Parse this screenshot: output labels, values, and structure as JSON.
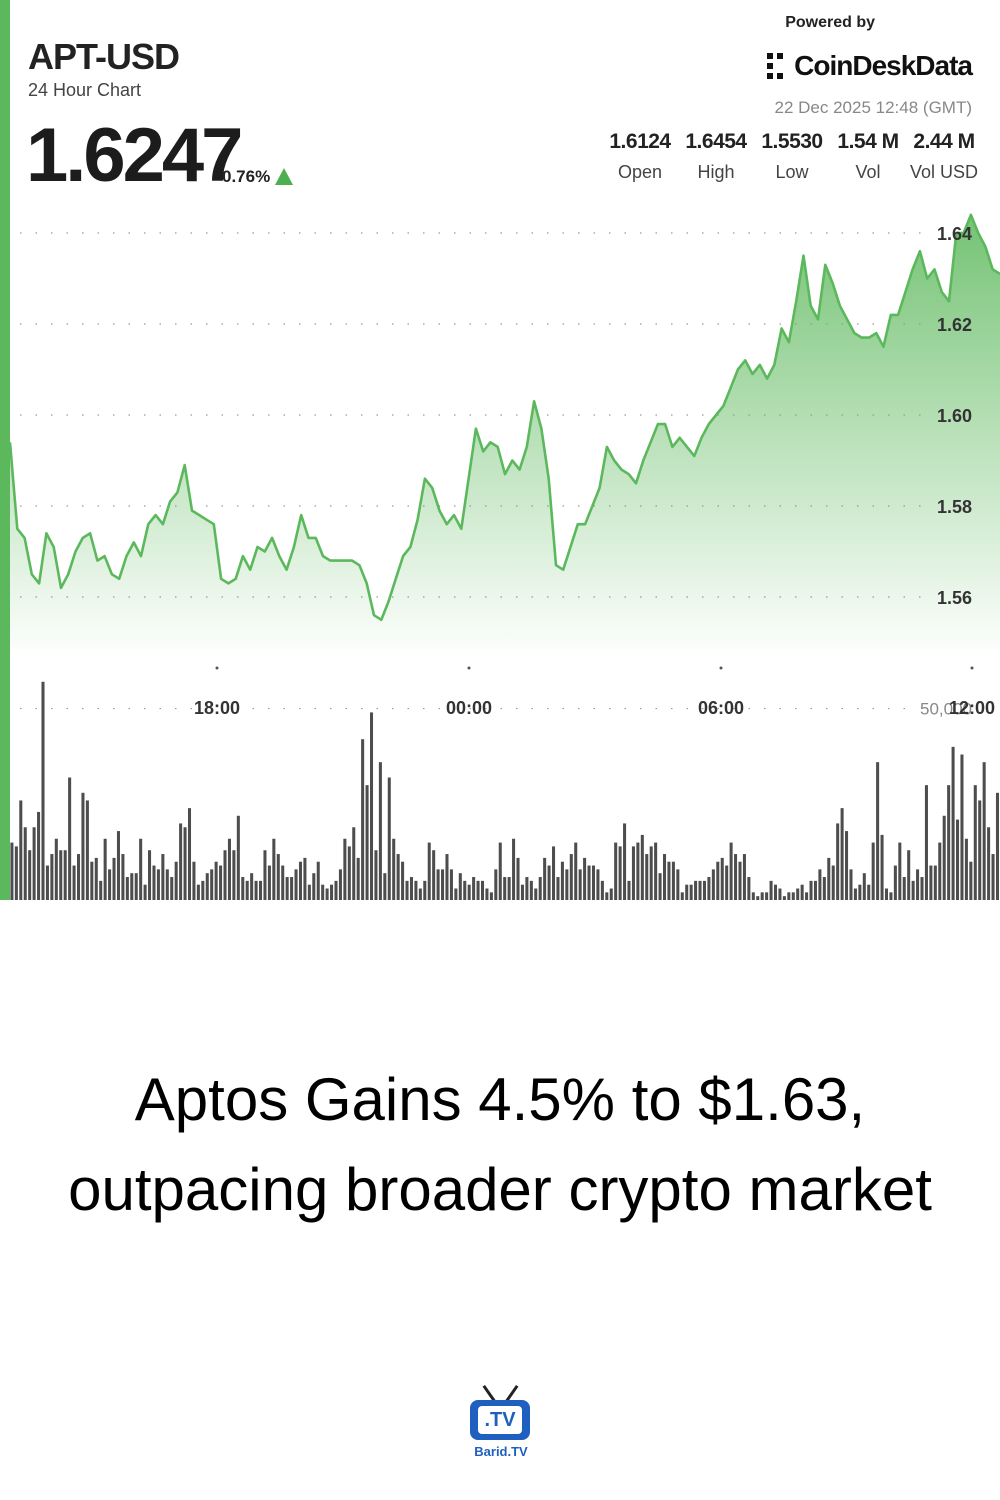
{
  "chart_header": {
    "symbol": "APT-USD",
    "subtitle": "24 Hour Chart",
    "price": "1.6247",
    "change": "0.76%",
    "powered_by": "Powered by",
    "brand": "CoinDeskData",
    "timestamp": "22 Dec 2025 12:48 (GMT)",
    "stats": [
      {
        "value": "1.6124",
        "label": "Open"
      },
      {
        "value": "1.6454",
        "label": "High"
      },
      {
        "value": "1.5530",
        "label": "Low"
      },
      {
        "value": "1.54 M",
        "label": "Vol"
      },
      {
        "value": "2.44 M",
        "label": "Vol USD"
      }
    ]
  },
  "chart_data": {
    "type": "area",
    "x_ticks": [
      "18:00",
      "00:00",
      "06:00",
      "12:00"
    ],
    "y_ticks": [
      "1.64",
      "1.62",
      "1.60",
      "1.58",
      "1.56"
    ],
    "ylim": [
      1.549,
      1.648
    ],
    "volume_tick": "50,000",
    "volume_max": 70000,
    "grid": true,
    "line_color": "#5cb85c",
    "volume_color": "#4d4d4d",
    "price_series": [
      1.594,
      1.575,
      1.573,
      1.565,
      1.563,
      1.574,
      1.571,
      1.562,
      1.565,
      1.57,
      1.573,
      1.574,
      1.568,
      1.569,
      1.565,
      1.564,
      1.569,
      1.572,
      1.569,
      1.576,
      1.578,
      1.576,
      1.581,
      1.583,
      1.589,
      1.579,
      1.578,
      1.577,
      1.576,
      1.564,
      1.563,
      1.564,
      1.569,
      1.566,
      1.571,
      1.57,
      1.573,
      1.569,
      1.566,
      1.571,
      1.578,
      1.573,
      1.573,
      1.569,
      1.568,
      1.568,
      1.568,
      1.568,
      1.567,
      1.563,
      1.556,
      1.555,
      1.559,
      1.564,
      1.569,
      1.571,
      1.577,
      1.586,
      1.584,
      1.579,
      1.576,
      1.578,
      1.575,
      1.586,
      1.597,
      1.592,
      1.594,
      1.593,
      1.587,
      1.59,
      1.588,
      1.593,
      1.603,
      1.597,
      1.586,
      1.567,
      1.566,
      1.571,
      1.576,
      1.576,
      1.58,
      1.584,
      1.593,
      1.59,
      1.588,
      1.587,
      1.585,
      1.59,
      1.594,
      1.598,
      1.598,
      1.593,
      1.595,
      1.593,
      1.591,
      1.595,
      1.598,
      1.6,
      1.602,
      1.606,
      1.61,
      1.612,
      1.609,
      1.611,
      1.608,
      1.611,
      1.619,
      1.616,
      1.625,
      1.635,
      1.624,
      1.621,
      1.633,
      1.629,
      1.624,
      1.621,
      1.618,
      1.617,
      1.617,
      1.618,
      1.615,
      1.622,
      1.622,
      1.627,
      1.632,
      1.636,
      1.63,
      1.632,
      1.627,
      1.625,
      1.64,
      1.64,
      1.644,
      1.64,
      1.637,
      1.632,
      1.631
    ],
    "volume_series": [
      15000,
      14000,
      26000,
      19000,
      13000,
      19000,
      23000,
      57000,
      9000,
      12000,
      16000,
      13000,
      13000,
      32000,
      9000,
      12000,
      28000,
      26000,
      10000,
      11000,
      5000,
      16000,
      8000,
      11000,
      18000,
      12000,
      6000,
      7000,
      7000,
      16000,
      4000,
      13000,
      9000,
      8000,
      12000,
      8000,
      6000,
      10000,
      20000,
      19000,
      24000,
      10000,
      4000,
      5000,
      7000,
      8000,
      10000,
      9000,
      13000,
      16000,
      13000,
      22000,
      6000,
      5000,
      7000,
      5000,
      5000,
      13000,
      9000,
      16000,
      12000,
      9000,
      6000,
      6000,
      8000,
      10000,
      11000,
      4000,
      7000,
      10000,
      4000,
      3000,
      4000,
      5000,
      8000,
      16000,
      14000,
      19000,
      11000,
      42000,
      30000,
      49000,
      13000,
      36000,
      7000,
      32000,
      16000,
      12000,
      10000,
      5000,
      6000,
      5000,
      3000,
      5000,
      15000,
      13000,
      8000,
      8000,
      12000,
      8000,
      3000,
      7000,
      5000,
      4000,
      6000,
      5000,
      5000,
      3000,
      2000,
      8000,
      15000,
      6000,
      6000,
      16000,
      11000,
      4000,
      6000,
      5000,
      3000,
      6000,
      11000,
      9000,
      14000,
      6000,
      10000,
      8000,
      12000,
      15000,
      8000,
      11000,
      9000,
      9000,
      8000,
      5000,
      2000,
      3000,
      15000,
      14000,
      20000,
      5000,
      14000,
      15000,
      17000,
      12000,
      14000,
      15000,
      7000,
      12000,
      10000,
      10000,
      8000,
      2000,
      4000,
      4000,
      5000,
      5000,
      5000,
      6000,
      8000,
      10000,
      11000,
      9000,
      15000,
      12000,
      10000,
      12000,
      6000,
      2000,
      1000,
      2000,
      2000,
      5000,
      4000,
      3000,
      1000,
      2000,
      2000,
      3000,
      4000,
      2000,
      5000,
      5000,
      8000,
      6000,
      11000,
      9000,
      20000,
      24000,
      18000,
      8000,
      3000,
      4000,
      7000,
      4000,
      15000,
      36000,
      17000,
      3000,
      2000,
      9000,
      15000,
      6000,
      13000,
      5000,
      8000,
      6000,
      30000,
      9000,
      9000,
      15000,
      22000,
      30000,
      40000,
      21000,
      38000,
      16000,
      10000,
      30000,
      26000,
      36000,
      19000,
      12000,
      28000
    ]
  },
  "headline": "Aptos Gains 4.5% to $1.63, outpacing broader crypto market",
  "logo": {
    "screen": ".TV",
    "caption": "Barid.TV",
    "color": "#1f5fbf"
  }
}
